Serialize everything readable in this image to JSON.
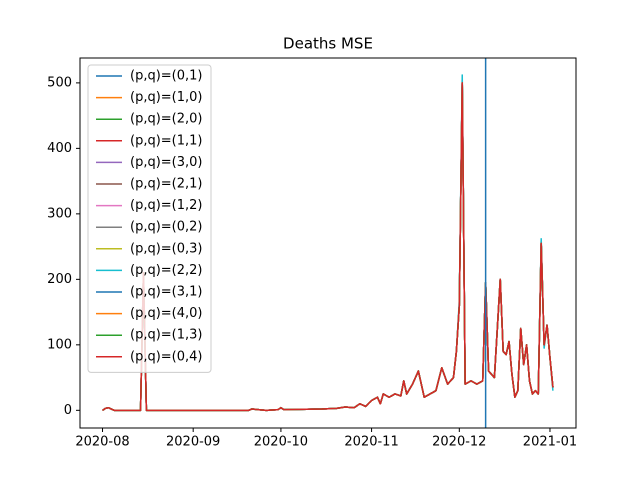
{
  "chart_data": {
    "type": "line",
    "title": "Deaths MSE",
    "x": [
      0,
      1,
      2,
      3,
      4,
      13,
      14,
      15,
      30,
      50,
      51,
      56,
      60,
      61,
      62,
      75,
      80,
      83,
      86,
      88,
      90,
      92,
      94,
      95,
      96,
      98,
      100,
      102,
      103,
      104,
      106,
      108,
      110,
      112,
      114,
      116,
      118,
      120,
      121,
      122,
      123,
      124,
      126,
      128,
      130,
      131,
      132,
      134,
      136,
      137,
      138,
      139,
      140,
      141,
      142,
      143,
      144,
      145,
      146,
      147,
      148,
      149,
      150,
      151,
      152,
      153,
      154
    ],
    "xlim": [
      -7.7,
      161.9
    ],
    "xticks": [
      {
        "value": 0,
        "label": "2020-08"
      },
      {
        "value": 31,
        "label": "2020-09"
      },
      {
        "value": 61,
        "label": "2020-10"
      },
      {
        "value": 92,
        "label": "2020-11"
      },
      {
        "value": 122,
        "label": "2020-12"
      },
      {
        "value": 153,
        "label": "2021-01"
      }
    ],
    "ylim": [
      -27,
      538
    ],
    "yticks": [
      0,
      100,
      200,
      300,
      400,
      500
    ],
    "vline": {
      "x": 131,
      "color": "#1f77b4"
    },
    "legend": "upper left",
    "series": [
      {
        "name": "(p,q)=(0,1)",
        "color": "#1f77b4",
        "values": [
          0,
          3,
          4,
          2,
          0,
          0,
          210,
          0,
          0,
          0,
          2,
          0,
          1,
          4,
          1,
          2,
          3,
          5,
          4,
          10,
          6,
          15,
          20,
          10,
          25,
          20,
          25,
          22,
          45,
          25,
          40,
          60,
          20,
          25,
          30,
          65,
          40,
          50,
          90,
          160,
          505,
          40,
          45,
          40,
          45,
          195,
          60,
          50,
          200,
          90,
          85,
          105,
          55,
          20,
          30,
          125,
          70,
          100,
          45,
          25,
          30,
          25,
          255,
          100,
          130,
          80,
          35
        ]
      },
      {
        "name": "(p,q)=(1,0)",
        "color": "#ff7f0e",
        "values": [
          0,
          3,
          4,
          2,
          0,
          0,
          210,
          0,
          0,
          0,
          2,
          0,
          1,
          4,
          1,
          2,
          3,
          5,
          4,
          10,
          6,
          15,
          20,
          10,
          25,
          20,
          25,
          22,
          45,
          25,
          40,
          60,
          20,
          25,
          30,
          65,
          40,
          50,
          90,
          160,
          500,
          40,
          45,
          40,
          45,
          195,
          60,
          50,
          200,
          90,
          85,
          105,
          55,
          20,
          30,
          125,
          70,
          100,
          45,
          25,
          30,
          25,
          255,
          100,
          130,
          80,
          35
        ]
      },
      {
        "name": "(p,q)=(2,0)",
        "color": "#2ca02c",
        "values": [
          0,
          3,
          4,
          2,
          0,
          0,
          210,
          0,
          0,
          0,
          2,
          0,
          1,
          4,
          1,
          2,
          3,
          5,
          4,
          10,
          6,
          15,
          20,
          10,
          25,
          20,
          25,
          22,
          45,
          25,
          40,
          60,
          20,
          25,
          30,
          65,
          40,
          50,
          90,
          160,
          500,
          40,
          45,
          40,
          45,
          195,
          60,
          50,
          200,
          90,
          85,
          105,
          55,
          20,
          30,
          125,
          70,
          100,
          45,
          25,
          30,
          25,
          258,
          100,
          130,
          80,
          35
        ]
      },
      {
        "name": "(p,q)=(1,1)",
        "color": "#d62728",
        "values": [
          0,
          3,
          4,
          2,
          0,
          0,
          210,
          0,
          0,
          0,
          2,
          0,
          1,
          4,
          1,
          2,
          3,
          5,
          4,
          10,
          6,
          15,
          20,
          10,
          25,
          20,
          25,
          22,
          45,
          25,
          40,
          60,
          20,
          25,
          30,
          65,
          40,
          50,
          90,
          160,
          500,
          40,
          45,
          40,
          45,
          195,
          60,
          50,
          200,
          90,
          85,
          105,
          55,
          20,
          30,
          125,
          70,
          100,
          45,
          25,
          30,
          25,
          255,
          100,
          130,
          80,
          35
        ]
      },
      {
        "name": "(p,q)=(3,0)",
        "color": "#9467bd",
        "values": [
          0,
          3,
          4,
          2,
          0,
          0,
          210,
          0,
          0,
          0,
          2,
          0,
          1,
          4,
          1,
          2,
          3,
          5,
          4,
          10,
          6,
          15,
          20,
          10,
          25,
          20,
          25,
          22,
          45,
          25,
          40,
          60,
          20,
          25,
          30,
          65,
          40,
          50,
          90,
          160,
          500,
          40,
          45,
          40,
          45,
          195,
          60,
          50,
          200,
          90,
          85,
          105,
          55,
          20,
          30,
          125,
          70,
          100,
          45,
          25,
          30,
          25,
          255,
          100,
          130,
          80,
          35
        ]
      },
      {
        "name": "(p,q)=(2,1)",
        "color": "#8c564b",
        "values": [
          0,
          3,
          4,
          2,
          0,
          0,
          210,
          0,
          0,
          0,
          2,
          0,
          1,
          4,
          1,
          2,
          3,
          5,
          4,
          10,
          6,
          15,
          20,
          10,
          25,
          20,
          25,
          22,
          45,
          25,
          40,
          60,
          20,
          25,
          30,
          65,
          40,
          50,
          90,
          160,
          500,
          40,
          45,
          40,
          45,
          195,
          60,
          50,
          200,
          90,
          85,
          105,
          55,
          20,
          30,
          125,
          70,
          100,
          45,
          25,
          30,
          25,
          255,
          100,
          130,
          80,
          35
        ]
      },
      {
        "name": "(p,q)=(1,2)",
        "color": "#e377c2",
        "values": [
          0,
          3,
          4,
          2,
          0,
          0,
          210,
          0,
          0,
          0,
          2,
          0,
          1,
          4,
          1,
          2,
          3,
          5,
          4,
          10,
          6,
          15,
          20,
          10,
          25,
          20,
          25,
          22,
          45,
          25,
          40,
          60,
          20,
          25,
          30,
          65,
          40,
          50,
          90,
          160,
          500,
          40,
          45,
          40,
          45,
          195,
          60,
          50,
          200,
          90,
          85,
          105,
          55,
          20,
          30,
          125,
          70,
          100,
          45,
          25,
          30,
          25,
          255,
          100,
          130,
          80,
          35
        ]
      },
      {
        "name": "(p,q)=(0,2)",
        "color": "#7f7f7f",
        "values": [
          0,
          3,
          4,
          2,
          0,
          0,
          210,
          0,
          0,
          0,
          2,
          0,
          1,
          4,
          1,
          2,
          3,
          5,
          4,
          10,
          6,
          15,
          20,
          10,
          25,
          20,
          25,
          22,
          45,
          25,
          40,
          60,
          20,
          25,
          30,
          65,
          40,
          50,
          90,
          160,
          500,
          40,
          45,
          40,
          45,
          195,
          60,
          50,
          200,
          90,
          85,
          105,
          55,
          20,
          30,
          125,
          70,
          100,
          45,
          25,
          30,
          25,
          255,
          100,
          130,
          80,
          35
        ]
      },
      {
        "name": "(p,q)=(0,3)",
        "color": "#bcbd22",
        "values": [
          0,
          3,
          4,
          2,
          0,
          0,
          210,
          0,
          0,
          0,
          2,
          0,
          1,
          4,
          1,
          2,
          3,
          5,
          4,
          10,
          6,
          15,
          20,
          10,
          25,
          20,
          25,
          22,
          45,
          25,
          40,
          60,
          20,
          25,
          30,
          65,
          40,
          50,
          90,
          160,
          500,
          40,
          45,
          40,
          45,
          195,
          60,
          50,
          200,
          90,
          85,
          105,
          55,
          20,
          30,
          125,
          70,
          100,
          45,
          25,
          30,
          25,
          255,
          100,
          130,
          80,
          35
        ]
      },
      {
        "name": "(p,q)=(2,2)",
        "color": "#17becf",
        "values": [
          0,
          3,
          4,
          2,
          0,
          0,
          210,
          0,
          0,
          0,
          2,
          0,
          1,
          4,
          1,
          2,
          3,
          5,
          4,
          10,
          6,
          15,
          20,
          10,
          25,
          20,
          25,
          22,
          45,
          25,
          40,
          60,
          20,
          25,
          30,
          65,
          40,
          50,
          90,
          168,
          512,
          40,
          45,
          40,
          45,
          195,
          60,
          50,
          200,
          90,
          85,
          105,
          55,
          20,
          30,
          125,
          70,
          100,
          45,
          25,
          30,
          25,
          262,
          95,
          130,
          80,
          30
        ]
      },
      {
        "name": "(p,q)=(3,1)",
        "color": "#1f77b4",
        "values": [
          0,
          3,
          4,
          2,
          0,
          0,
          210,
          0,
          0,
          0,
          2,
          0,
          1,
          4,
          1,
          2,
          3,
          5,
          4,
          10,
          6,
          15,
          20,
          10,
          25,
          20,
          25,
          22,
          45,
          25,
          40,
          60,
          20,
          25,
          30,
          65,
          40,
          50,
          90,
          160,
          500,
          40,
          45,
          40,
          45,
          195,
          60,
          50,
          200,
          90,
          85,
          105,
          55,
          20,
          30,
          125,
          70,
          100,
          45,
          25,
          30,
          25,
          255,
          100,
          130,
          80,
          35
        ]
      },
      {
        "name": "(p,q)=(4,0)",
        "color": "#ff7f0e",
        "values": [
          0,
          3,
          4,
          2,
          0,
          0,
          210,
          0,
          0,
          0,
          2,
          0,
          1,
          4,
          1,
          2,
          3,
          5,
          4,
          10,
          6,
          15,
          20,
          10,
          25,
          20,
          25,
          22,
          45,
          25,
          40,
          60,
          20,
          25,
          30,
          65,
          40,
          50,
          90,
          160,
          500,
          40,
          45,
          40,
          45,
          195,
          60,
          50,
          200,
          90,
          85,
          105,
          55,
          20,
          30,
          125,
          70,
          100,
          45,
          25,
          30,
          25,
          255,
          100,
          130,
          80,
          35
        ]
      },
      {
        "name": "(p,q)=(1,3)",
        "color": "#2ca02c",
        "values": [
          0,
          3,
          4,
          2,
          0,
          0,
          210,
          0,
          0,
          0,
          2,
          0,
          1,
          4,
          1,
          2,
          3,
          5,
          4,
          10,
          6,
          15,
          20,
          10,
          25,
          20,
          25,
          22,
          45,
          25,
          40,
          60,
          20,
          25,
          30,
          65,
          40,
          50,
          90,
          160,
          500,
          40,
          45,
          40,
          45,
          195,
          60,
          50,
          200,
          90,
          85,
          105,
          55,
          20,
          30,
          125,
          70,
          100,
          45,
          25,
          30,
          25,
          255,
          100,
          130,
          80,
          35
        ]
      },
      {
        "name": "(p,q)=(0,4)",
        "color": "#d62728",
        "values": [
          0,
          3,
          4,
          2,
          0,
          0,
          210,
          0,
          0,
          0,
          2,
          0,
          1,
          4,
          1,
          2,
          3,
          5,
          4,
          10,
          6,
          15,
          20,
          10,
          25,
          20,
          25,
          22,
          45,
          25,
          40,
          60,
          20,
          25,
          30,
          65,
          40,
          50,
          90,
          160,
          500,
          40,
          45,
          40,
          45,
          195,
          60,
          50,
          200,
          90,
          85,
          105,
          55,
          20,
          30,
          125,
          70,
          100,
          45,
          25,
          30,
          25,
          255,
          100,
          130,
          80,
          35
        ]
      }
    ]
  }
}
